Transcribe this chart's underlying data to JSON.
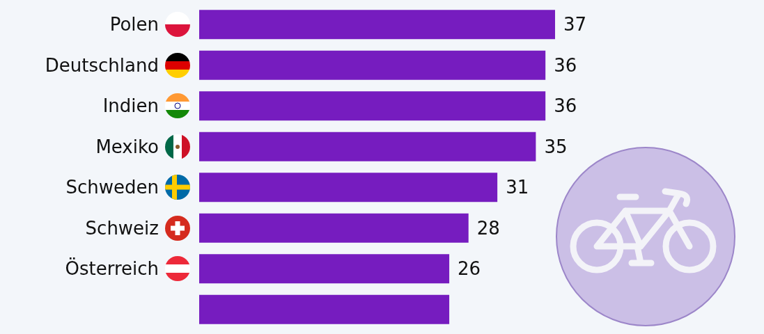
{
  "chart_data": {
    "type": "bar",
    "orientation": "horizontal",
    "tick_labels": "y",
    "categories": [
      "Polen",
      "Deutschland",
      "Indien",
      "Mexiko",
      "Schweden",
      "Schweiz",
      "Österreich",
      null
    ],
    "values": [
      37,
      36,
      36,
      35,
      31,
      28,
      26,
      26
    ],
    "value_labels": [
      "37",
      "36",
      "36",
      "35",
      "31",
      "28",
      "26",
      null
    ],
    "color": "#761cbf"
  }
}
